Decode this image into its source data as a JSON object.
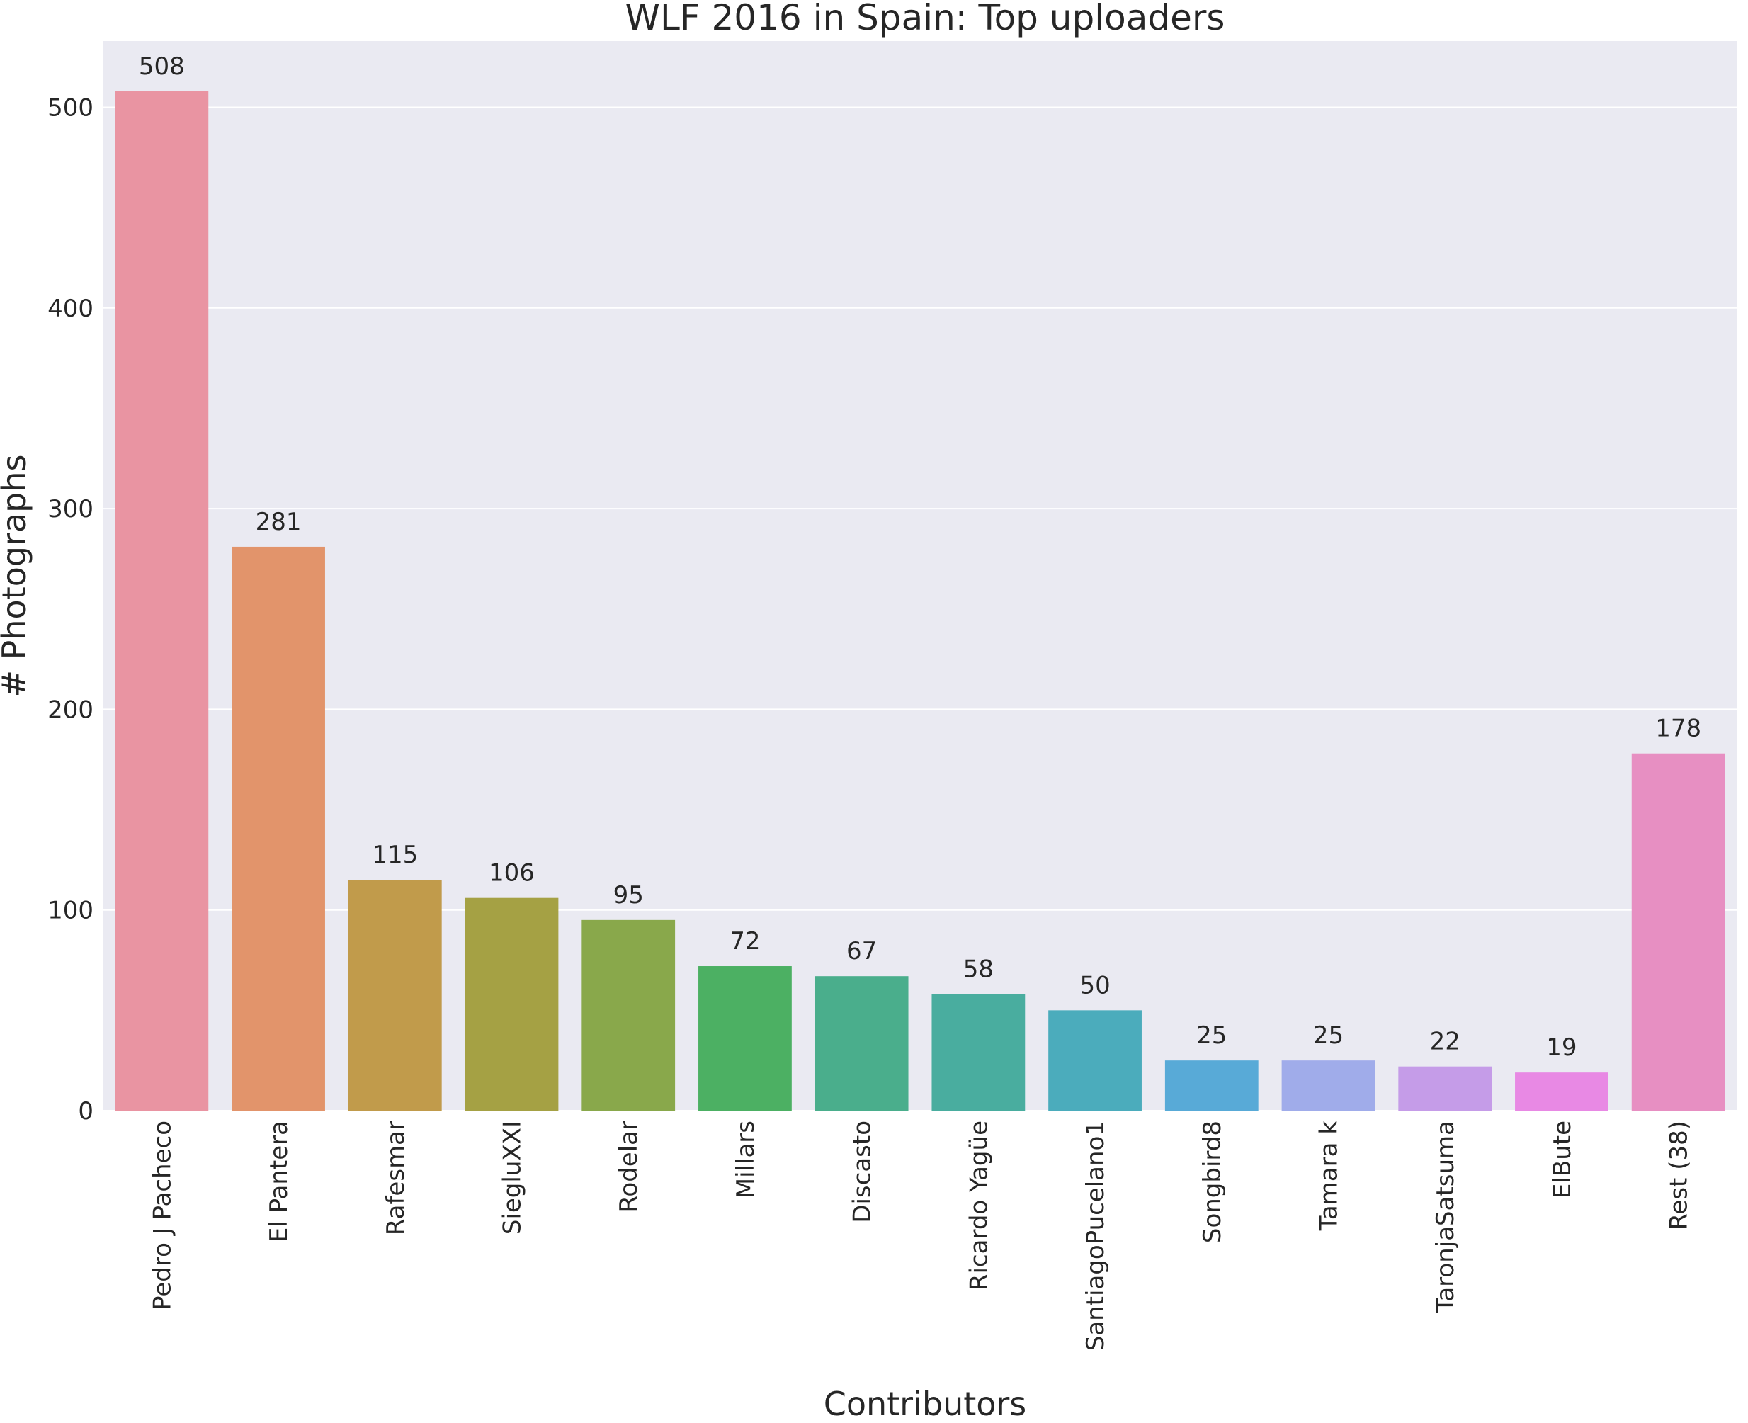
{
  "chart_data": {
    "type": "bar",
    "title": "WLF 2016 in Spain: Top uploaders",
    "xlabel": "Contributors",
    "ylabel": "# Photographs",
    "ylim": [
      0,
      533
    ],
    "yticks": [
      0,
      100,
      200,
      300,
      400,
      500
    ],
    "grid": true,
    "categories": [
      "Pedro J Pacheco",
      "El Pantera",
      "Rafesmar",
      "SiegluXXI",
      "Rodelar",
      "Millars",
      "Discasto",
      "Ricardo Yagüe",
      "SantiagoPucelano1",
      "Songbird8",
      "Tamara k",
      "TaronjaSatsuma",
      "ElBute",
      "Rest (38)"
    ],
    "values": [
      508,
      281,
      115,
      106,
      95,
      72,
      67,
      58,
      50,
      25,
      25,
      22,
      19,
      178
    ],
    "data_labels": [
      "508",
      "281",
      "115",
      "106",
      "95",
      "72",
      "67",
      "58",
      "50",
      "25",
      "25",
      "22",
      "19",
      "178"
    ],
    "colors": [
      "#e994a2",
      "#e2946b",
      "#c19b4b",
      "#a5a144",
      "#89a84b",
      "#4cb063",
      "#4aae8c",
      "#49ad9f",
      "#4bacbc",
      "#58aad7",
      "#a0acea",
      "#c59ce8",
      "#e889e4",
      "#e78fc2"
    ],
    "plot_background": "#eaeaf2",
    "grid_color": "#ffffff"
  }
}
